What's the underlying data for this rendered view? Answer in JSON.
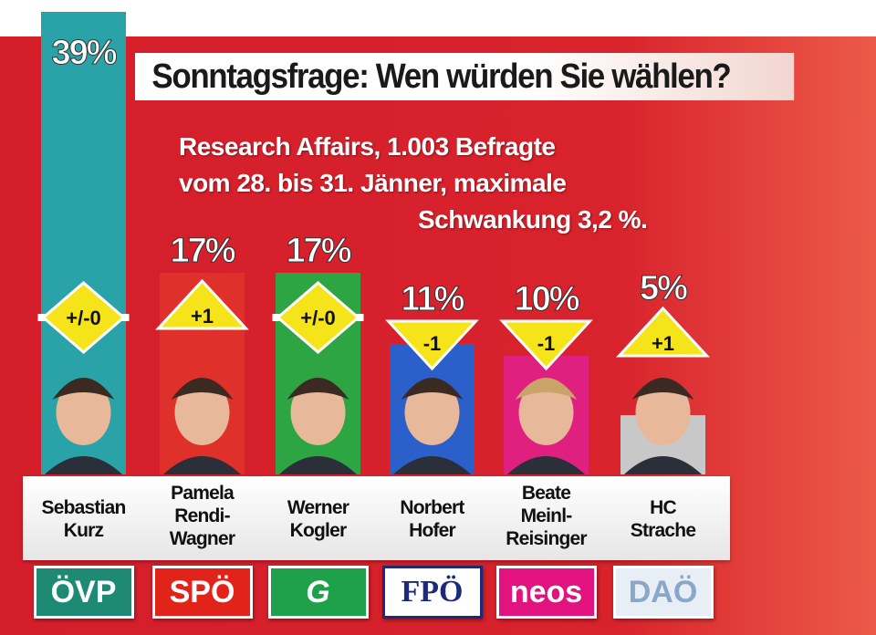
{
  "title": "Sonntagsfrage: Wen würden Sie wählen?",
  "subtitle_lines": [
    "Research Affairs, 1.003 Befragte",
    "vom 28. bis 31. Jänner, maximale",
    "Schwankung 3,2 %."
  ],
  "chart_data": {
    "type": "bar",
    "title": "Sonntagsfrage: Wen würden Sie wählen?",
    "categories": [
      "Sebastian Kurz",
      "Pamela Rendi-Wagner",
      "Werner Kogler",
      "Norbert Hofer",
      "Beate Meinl-Reisinger",
      "HC Strache"
    ],
    "values": [
      39,
      17,
      17,
      11,
      10,
      5
    ],
    "value_labels": [
      "39%",
      "17%",
      "17%",
      "11%",
      "10%",
      "5%"
    ],
    "changes": [
      "+/-0",
      "+1",
      "+/-0",
      "-1",
      "-1",
      "+1"
    ],
    "change_direction": [
      "neutral",
      "up",
      "neutral",
      "down",
      "down",
      "up"
    ],
    "parties": [
      "ÖVP",
      "SPÖ",
      "G",
      "FPÖ",
      "neos",
      "DAÖ"
    ],
    "name_lines": [
      [
        "Sebastian",
        "Kurz"
      ],
      [
        "Pamela",
        "Rendi-",
        "Wagner"
      ],
      [
        "Werner",
        "Kogler"
      ],
      [
        "Norbert",
        "Hofer"
      ],
      [
        "Beate",
        "Meinl-",
        "Reisinger"
      ],
      [
        "HC",
        "Strache"
      ]
    ],
    "colors": [
      "#2aa3a8",
      "#e0302a",
      "#2ea543",
      "#2b5fc9",
      "#e0207f",
      "#c8c8c8"
    ],
    "logo_colors": [
      "#1f8a74",
      "#e2231a",
      "#1fa04a",
      "#ffffff",
      "#e2137e",
      "#e8eef5"
    ],
    "logo_text_colors": [
      "#ffffff",
      "#ffffff",
      "#ffffff",
      "#1d2a7a",
      "#ffffff",
      "#8aa6c8"
    ],
    "ylim": [
      0,
      40
    ]
  }
}
